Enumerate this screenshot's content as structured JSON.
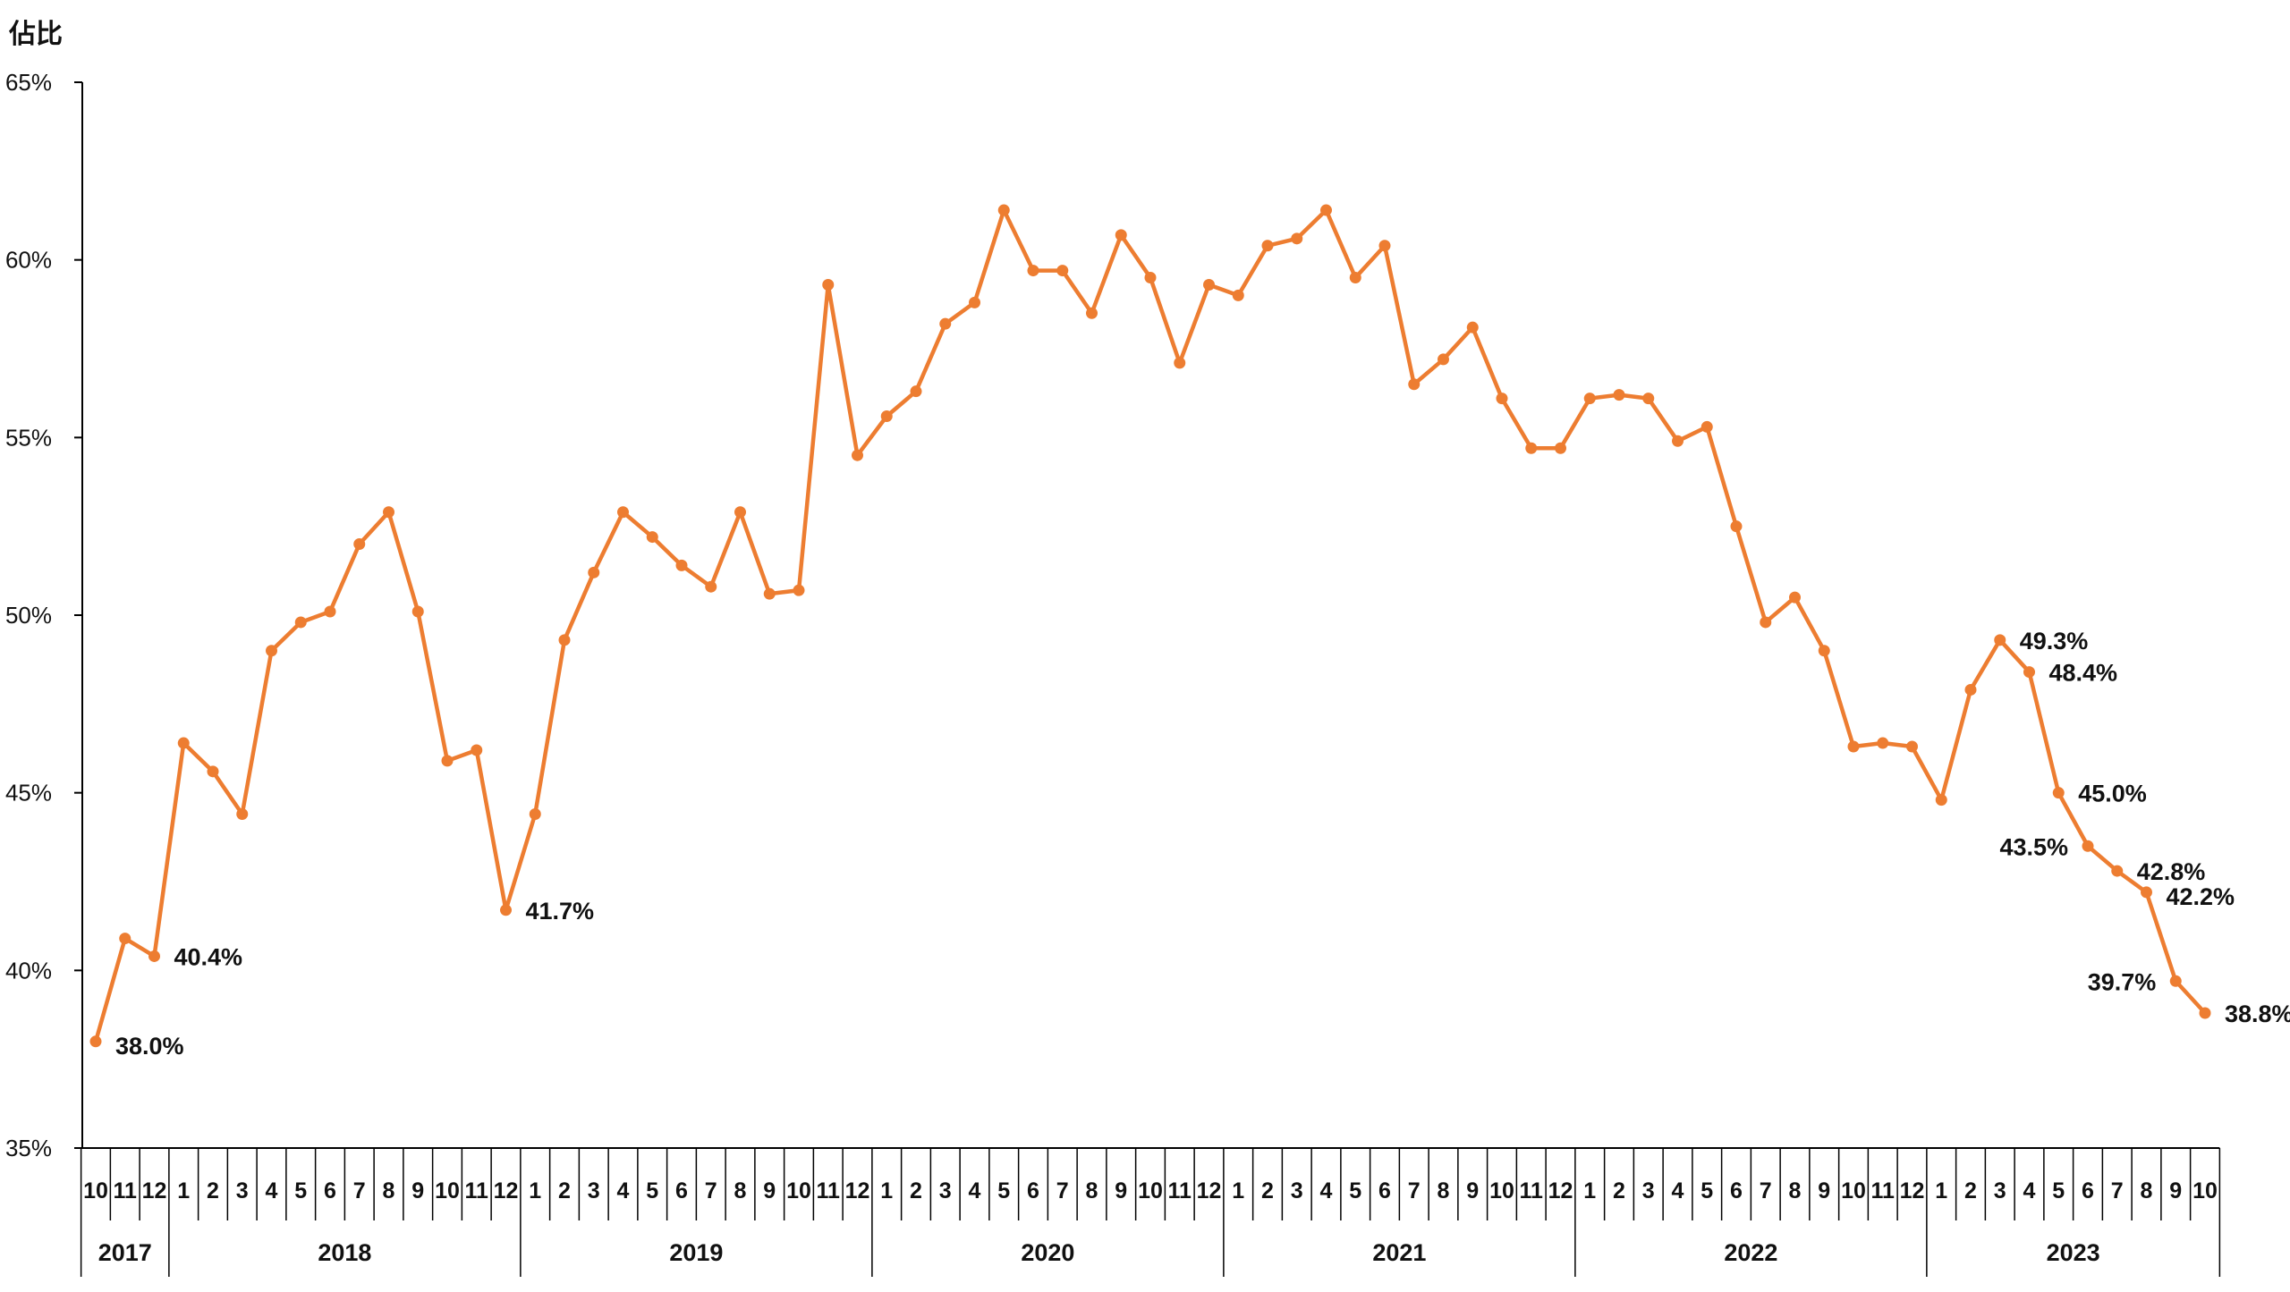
{
  "chart_data": {
    "type": "line",
    "ylabel": "佔比",
    "ylim": [
      35,
      65
    ],
    "yticks": [
      35,
      40,
      45,
      50,
      55,
      60,
      65
    ],
    "ytick_format": "%",
    "grid": false,
    "color": "#ED7D31",
    "years": [
      {
        "label": "2017",
        "months": [
          "10",
          "11",
          "12"
        ]
      },
      {
        "label": "2018",
        "months": [
          "1",
          "2",
          "3",
          "4",
          "5",
          "6",
          "7",
          "8",
          "9",
          "10",
          "11",
          "12"
        ]
      },
      {
        "label": "2019",
        "months": [
          "1",
          "2",
          "3",
          "4",
          "5",
          "6",
          "7",
          "8",
          "9",
          "10",
          "11",
          "12"
        ]
      },
      {
        "label": "2020",
        "months": [
          "1",
          "2",
          "3",
          "4",
          "5",
          "6",
          "7",
          "8",
          "9",
          "10",
          "11",
          "12"
        ]
      },
      {
        "label": "2021",
        "months": [
          "1",
          "2",
          "3",
          "4",
          "5",
          "6",
          "7",
          "8",
          "9",
          "10",
          "11",
          "12"
        ]
      },
      {
        "label": "2022",
        "months": [
          "1",
          "2",
          "3",
          "4",
          "5",
          "6",
          "7",
          "8",
          "9",
          "10",
          "11",
          "12"
        ]
      },
      {
        "label": "2023",
        "months": [
          "1",
          "2",
          "3",
          "4",
          "5",
          "6",
          "7",
          "8",
          "9",
          "10"
        ]
      }
    ],
    "values": [
      38.0,
      40.9,
      40.4,
      46.4,
      45.6,
      44.4,
      49.0,
      49.8,
      50.1,
      52.0,
      52.9,
      50.1,
      45.9,
      46.2,
      41.7,
      44.4,
      49.3,
      51.2,
      52.9,
      52.2,
      51.4,
      50.8,
      52.9,
      50.6,
      50.7,
      59.3,
      54.5,
      55.6,
      56.3,
      58.2,
      58.8,
      61.4,
      59.7,
      59.7,
      58.5,
      60.7,
      59.5,
      57.1,
      59.3,
      59.0,
      60.4,
      60.6,
      61.4,
      59.5,
      60.4,
      56.5,
      57.2,
      58.1,
      56.1,
      54.7,
      54.7,
      56.1,
      56.2,
      56.1,
      54.9,
      55.3,
      52.5,
      49.8,
      50.5,
      49.0,
      46.3,
      46.4,
      46.3,
      44.8,
      47.9,
      49.3,
      48.4,
      45.0,
      43.5,
      42.8,
      42.2,
      39.7,
      38.8
    ],
    "annotations": [
      {
        "index": 0,
        "text": "38.0%",
        "placement": "right-below"
      },
      {
        "index": 2,
        "text": "40.4%",
        "placement": "right"
      },
      {
        "index": 14,
        "text": "41.7%",
        "placement": "right"
      },
      {
        "index": 65,
        "text": "49.3%",
        "placement": "right"
      },
      {
        "index": 66,
        "text": "48.4%",
        "placement": "right"
      },
      {
        "index": 67,
        "text": "45.0%",
        "placement": "right"
      },
      {
        "index": 68,
        "text": "43.5%",
        "placement": "left"
      },
      {
        "index": 69,
        "text": "42.8%",
        "placement": "right"
      },
      {
        "index": 70,
        "text": "42.2%",
        "placement": "right-below"
      },
      {
        "index": 71,
        "text": "39.7%",
        "placement": "left"
      },
      {
        "index": 72,
        "text": "38.8%",
        "placement": "right"
      }
    ]
  }
}
